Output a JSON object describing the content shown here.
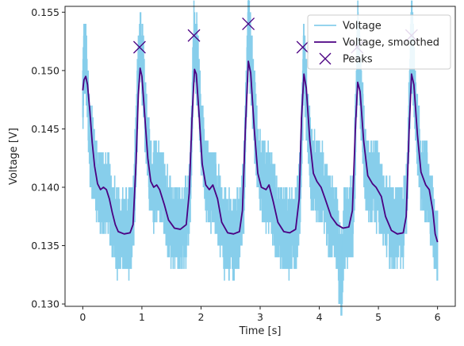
{
  "chart_data": {
    "type": "line",
    "xlabel": "Time [s]",
    "ylabel": "Voltage [V]",
    "xlim": [
      -0.3,
      6.3
    ],
    "ylim": [
      0.1298,
      0.1555
    ],
    "x_ticks": [
      0,
      1,
      2,
      3,
      4,
      5,
      6
    ],
    "y_ticks": [
      0.13,
      0.135,
      0.14,
      0.145,
      0.15,
      0.155
    ],
    "y_tick_labels": [
      "0.130",
      "0.135",
      "0.140",
      "0.145",
      "0.150",
      "0.155"
    ],
    "legend_position": "top-right",
    "colors": {
      "raw": "#87ceeb",
      "smoothed": "#4b0082",
      "peaks": "#4b0082"
    },
    "series": [
      {
        "name": "Voltage",
        "style": "noisy-band",
        "points": [
          [
            0.0,
            0.1475
          ],
          [
            0.02,
            0.1515
          ],
          [
            0.06,
            0.1505
          ],
          [
            0.1,
            0.1455
          ],
          [
            0.15,
            0.143
          ],
          [
            0.2,
            0.1412
          ],
          [
            0.25,
            0.14
          ],
          [
            0.32,
            0.1395
          ],
          [
            0.4,
            0.1398
          ],
          [
            0.45,
            0.139
          ],
          [
            0.5,
            0.1375
          ],
          [
            0.55,
            0.1368
          ],
          [
            0.6,
            0.1362
          ],
          [
            0.7,
            0.136
          ],
          [
            0.8,
            0.1362
          ],
          [
            0.86,
            0.1375
          ],
          [
            0.9,
            0.143
          ],
          [
            0.95,
            0.1518
          ],
          [
            0.98,
            0.1525
          ],
          [
            1.02,
            0.15
          ],
          [
            1.08,
            0.144
          ],
          [
            1.14,
            0.141
          ],
          [
            1.2,
            0.1402
          ],
          [
            1.28,
            0.1405
          ],
          [
            1.35,
            0.1398
          ],
          [
            1.45,
            0.1375
          ],
          [
            1.55,
            0.1365
          ],
          [
            1.65,
            0.1363
          ],
          [
            1.75,
            0.1368
          ],
          [
            1.82,
            0.14
          ],
          [
            1.88,
            0.1525
          ],
          [
            1.95,
            0.15
          ],
          [
            2.0,
            0.1445
          ],
          [
            2.1,
            0.1405
          ],
          [
            2.2,
            0.1403
          ],
          [
            2.3,
            0.1382
          ],
          [
            2.4,
            0.1362
          ],
          [
            2.55,
            0.136
          ],
          [
            2.65,
            0.1362
          ],
          [
            2.72,
            0.139
          ],
          [
            2.8,
            0.1538
          ],
          [
            2.88,
            0.1485
          ],
          [
            2.95,
            0.143
          ],
          [
            3.05,
            0.14
          ],
          [
            3.15,
            0.1403
          ],
          [
            3.25,
            0.1378
          ],
          [
            3.35,
            0.1365
          ],
          [
            3.5,
            0.1362
          ],
          [
            3.6,
            0.1365
          ],
          [
            3.68,
            0.14
          ],
          [
            3.74,
            0.1518
          ],
          [
            3.8,
            0.1455
          ],
          [
            3.88,
            0.1412
          ],
          [
            3.95,
            0.1408
          ],
          [
            4.05,
            0.14
          ],
          [
            4.15,
            0.1378
          ],
          [
            4.3,
            0.1365
          ],
          [
            4.38,
            0.1312
          ],
          [
            4.42,
            0.1365
          ],
          [
            4.5,
            0.1365
          ],
          [
            4.58,
            0.1378
          ],
          [
            4.65,
            0.1525
          ],
          [
            4.72,
            0.146
          ],
          [
            4.8,
            0.141
          ],
          [
            4.9,
            0.1402
          ],
          [
            5.0,
            0.14
          ],
          [
            5.1,
            0.1378
          ],
          [
            5.25,
            0.1365
          ],
          [
            5.4,
            0.1365
          ],
          [
            5.48,
            0.139
          ],
          [
            5.56,
            0.153
          ],
          [
            5.63,
            0.147
          ],
          [
            5.72,
            0.1412
          ],
          [
            5.82,
            0.1405
          ],
          [
            5.9,
            0.138
          ],
          [
            6.0,
            0.1345
          ]
        ]
      },
      {
        "name": "Voltage, smoothed",
        "style": "line",
        "points": [
          [
            0.0,
            0.1483
          ],
          [
            0.02,
            0.1492
          ],
          [
            0.05,
            0.1495
          ],
          [
            0.08,
            0.1488
          ],
          [
            0.12,
            0.1465
          ],
          [
            0.16,
            0.1438
          ],
          [
            0.2,
            0.1418
          ],
          [
            0.25,
            0.1403
          ],
          [
            0.3,
            0.1398
          ],
          [
            0.35,
            0.14
          ],
          [
            0.4,
            0.1398
          ],
          [
            0.45,
            0.139
          ],
          [
            0.5,
            0.1378
          ],
          [
            0.55,
            0.1368
          ],
          [
            0.6,
            0.1362
          ],
          [
            0.7,
            0.136
          ],
          [
            0.8,
            0.1361
          ],
          [
            0.85,
            0.1368
          ],
          [
            0.9,
            0.142
          ],
          [
            0.94,
            0.148
          ],
          [
            0.97,
            0.1502
          ],
          [
            1.0,
            0.1495
          ],
          [
            1.05,
            0.146
          ],
          [
            1.1,
            0.1425
          ],
          [
            1.15,
            0.1405
          ],
          [
            1.2,
            0.14
          ],
          [
            1.25,
            0.1402
          ],
          [
            1.3,
            0.1398
          ],
          [
            1.38,
            0.1385
          ],
          [
            1.45,
            0.1372
          ],
          [
            1.55,
            0.1365
          ],
          [
            1.65,
            0.1364
          ],
          [
            1.75,
            0.1368
          ],
          [
            1.8,
            0.1395
          ],
          [
            1.85,
            0.1462
          ],
          [
            1.89,
            0.1501
          ],
          [
            1.92,
            0.1497
          ],
          [
            1.97,
            0.146
          ],
          [
            2.02,
            0.142
          ],
          [
            2.08,
            0.1402
          ],
          [
            2.14,
            0.1398
          ],
          [
            2.2,
            0.1402
          ],
          [
            2.28,
            0.139
          ],
          [
            2.35,
            0.137
          ],
          [
            2.45,
            0.1361
          ],
          [
            2.55,
            0.136
          ],
          [
            2.65,
            0.1362
          ],
          [
            2.7,
            0.138
          ],
          [
            2.75,
            0.145
          ],
          [
            2.8,
            0.1508
          ],
          [
            2.84,
            0.1498
          ],
          [
            2.9,
            0.145
          ],
          [
            2.96,
            0.1412
          ],
          [
            3.02,
            0.14
          ],
          [
            3.1,
            0.1398
          ],
          [
            3.15,
            0.1402
          ],
          [
            3.22,
            0.1388
          ],
          [
            3.3,
            0.137
          ],
          [
            3.4,
            0.1362
          ],
          [
            3.5,
            0.1361
          ],
          [
            3.6,
            0.1364
          ],
          [
            3.66,
            0.139
          ],
          [
            3.7,
            0.146
          ],
          [
            3.74,
            0.1497
          ],
          [
            3.78,
            0.1485
          ],
          [
            3.84,
            0.144
          ],
          [
            3.9,
            0.1412
          ],
          [
            3.96,
            0.1405
          ],
          [
            4.03,
            0.14
          ],
          [
            4.1,
            0.139
          ],
          [
            4.2,
            0.1375
          ],
          [
            4.3,
            0.1368
          ],
          [
            4.4,
            0.1365
          ],
          [
            4.5,
            0.1366
          ],
          [
            4.56,
            0.138
          ],
          [
            4.61,
            0.145
          ],
          [
            4.65,
            0.149
          ],
          [
            4.69,
            0.1482
          ],
          [
            4.75,
            0.144
          ],
          [
            4.82,
            0.141
          ],
          [
            4.9,
            0.1403
          ],
          [
            4.96,
            0.14
          ],
          [
            5.05,
            0.1392
          ],
          [
            5.12,
            0.1375
          ],
          [
            5.22,
            0.1363
          ],
          [
            5.32,
            0.136
          ],
          [
            5.42,
            0.1361
          ],
          [
            5.47,
            0.1375
          ],
          [
            5.52,
            0.145
          ],
          [
            5.56,
            0.1497
          ],
          [
            5.6,
            0.1488
          ],
          [
            5.66,
            0.1445
          ],
          [
            5.72,
            0.1413
          ],
          [
            5.8,
            0.1402
          ],
          [
            5.86,
            0.1398
          ],
          [
            5.92,
            0.138
          ],
          [
            5.96,
            0.136
          ],
          [
            6.0,
            0.1353
          ]
        ]
      },
      {
        "name": "Peaks",
        "style": "markers",
        "points": [
          [
            0.96,
            0.152
          ],
          [
            1.88,
            0.153
          ],
          [
            2.8,
            0.154
          ],
          [
            3.72,
            0.152
          ],
          [
            4.64,
            0.152
          ],
          [
            5.56,
            0.153
          ]
        ]
      }
    ]
  }
}
